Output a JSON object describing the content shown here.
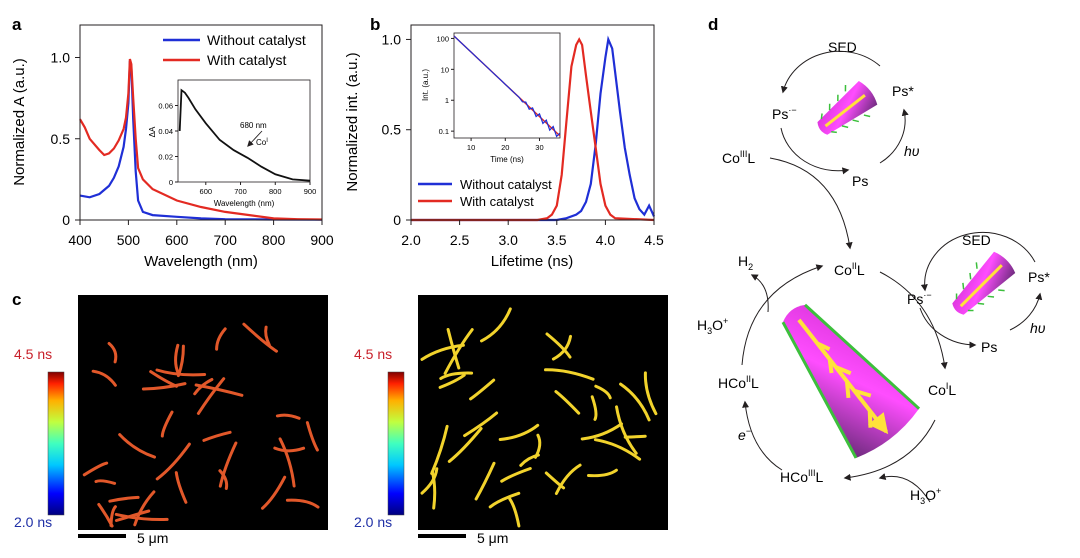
{
  "panel_labels": {
    "a": "a",
    "b": "b",
    "c": "c",
    "d": "d"
  },
  "colors": {
    "without": "#1f2fd6",
    "with": "#e32a22",
    "inset": "#111111"
  },
  "chart_data": [
    {
      "id": "a",
      "type": "line",
      "xlabel": "Wavelength (nm)",
      "ylabel": "Normalized A (a.u.)",
      "xlim": [
        400,
        900
      ],
      "ylim": [
        0,
        1.2
      ],
      "xticks": [
        400,
        500,
        600,
        700,
        800,
        900
      ],
      "yticks": [
        0,
        0.5,
        1.0
      ],
      "ytick_labels": [
        "0",
        "0.5",
        "1.0"
      ],
      "legend": "top-right",
      "series": [
        {
          "name": "Without catalyst",
          "color": "#1f2fd6",
          "x": [
            400,
            420,
            440,
            460,
            470,
            480,
            490,
            495,
            500,
            503,
            506,
            510,
            515,
            520,
            530,
            550,
            600,
            650,
            700,
            800,
            900
          ],
          "y": [
            0.15,
            0.14,
            0.16,
            0.21,
            0.26,
            0.33,
            0.45,
            0.56,
            0.72,
            0.98,
            0.95,
            0.62,
            0.3,
            0.12,
            0.05,
            0.03,
            0.02,
            0.01,
            0.005,
            0.003,
            0.002
          ]
        },
        {
          "name": "With catalyst",
          "color": "#e32a22",
          "x": [
            400,
            410,
            420,
            440,
            450,
            460,
            470,
            480,
            490,
            495,
            500,
            503,
            506,
            510,
            515,
            520,
            530,
            550,
            600,
            650,
            700,
            750,
            800,
            850,
            900
          ],
          "y": [
            0.62,
            0.57,
            0.5,
            0.43,
            0.4,
            0.41,
            0.44,
            0.49,
            0.56,
            0.63,
            0.78,
            0.99,
            0.96,
            0.75,
            0.5,
            0.32,
            0.25,
            0.19,
            0.12,
            0.08,
            0.05,
            0.03,
            0.01,
            0.005,
            0.003
          ]
        }
      ],
      "inset": {
        "xlabel": "Wavelength (nm)",
        "ylabel": "ΔA",
        "xlim": [
          520,
          900
        ],
        "ylim": [
          0,
          0.08
        ],
        "xticks": [
          600,
          700,
          800,
          900
        ],
        "yticks": [
          0,
          0.02,
          0.04,
          0.06
        ],
        "ytick_labels": [
          "0",
          "0.02",
          "0.04",
          "0.06"
        ],
        "annotation": "680 nm",
        "annotation2": "Co",
        "annotation2_sup": "I",
        "x": [
          525,
          530,
          540,
          550,
          570,
          600,
          640,
          680,
          700,
          720,
          760,
          800,
          850,
          900
        ],
        "y": [
          0.04,
          0.072,
          0.07,
          0.066,
          0.057,
          0.046,
          0.033,
          0.025,
          0.022,
          0.019,
          0.012,
          0.006,
          0.002,
          0.001
        ]
      }
    },
    {
      "id": "b",
      "type": "line",
      "xlabel": "Lifetime (ns)",
      "ylabel": "Normalized int. (a.u.)",
      "xlim": [
        2.0,
        4.5
      ],
      "ylim": [
        0,
        1.08
      ],
      "xticks": [
        2.0,
        2.5,
        3.0,
        3.5,
        4.0,
        4.5
      ],
      "xtick_labels": [
        "2.0",
        "2.5",
        "3.0",
        "3.5",
        "4.0",
        "4.5"
      ],
      "yticks": [
        0,
        0.5,
        1.0
      ],
      "ytick_labels": [
        "0",
        "0.5",
        "1.0"
      ],
      "legend": "bottom-left",
      "series": [
        {
          "name": "Without catalyst",
          "color": "#1f2fd6",
          "x": [
            2.0,
            3.5,
            3.6,
            3.7,
            3.75,
            3.8,
            3.85,
            3.9,
            3.95,
            4.0,
            4.03,
            4.07,
            4.1,
            4.15,
            4.2,
            4.25,
            4.3,
            4.35,
            4.4,
            4.45,
            4.5
          ],
          "y": [
            0,
            0,
            0.01,
            0.03,
            0.05,
            0.1,
            0.2,
            0.42,
            0.7,
            0.9,
            1.0,
            0.95,
            0.82,
            0.6,
            0.4,
            0.25,
            0.12,
            0.06,
            0.03,
            0.08,
            0.02
          ]
        },
        {
          "name": "With catalyst",
          "color": "#e32a22",
          "x": [
            2.0,
            3.3,
            3.4,
            3.45,
            3.5,
            3.55,
            3.6,
            3.65,
            3.7,
            3.73,
            3.76,
            3.8,
            3.85,
            3.9,
            3.95,
            4.0,
            4.05,
            4.1,
            4.5
          ],
          "y": [
            0,
            0,
            0.01,
            0.03,
            0.08,
            0.25,
            0.55,
            0.85,
            0.97,
            1.0,
            0.97,
            0.8,
            0.6,
            0.4,
            0.2,
            0.08,
            0.03,
            0.01,
            0
          ]
        }
      ],
      "inset": {
        "xlabel": "Time (ns)",
        "ylabel": "Int. (a.u.)",
        "xlim": [
          5,
          36
        ],
        "ylim_log": [
          0.06,
          150
        ],
        "xticks": [
          10,
          20,
          30
        ],
        "yticks": [
          0.1,
          1,
          10,
          100
        ],
        "ytick_labels": [
          "0.1",
          "1",
          "10",
          "100"
        ],
        "x": [
          5,
          36
        ],
        "y": [
          120,
          0.07
        ]
      }
    }
  ],
  "panel_c": {
    "scale_top": "4.5 ns",
    "scale_bottom": "2.0 ns",
    "scalebar": "5 μm",
    "left_color": "#e2582a",
    "right_color": "#f2d32c"
  },
  "panel_d": {
    "sed": "SED",
    "ps": "Ps",
    "ps_radical": "Ps",
    "ps_radical_sup": "·−",
    "ps_star": "Ps*",
    "hv": "hυ",
    "co3l": "Co",
    "co3l_sup": "III",
    "co2l": "Co",
    "co2l_sup": "II",
    "co1l": "Co",
    "co1l_sup": "I",
    "hco2l": "HCo",
    "hco2l_sup": "II",
    "hco3l": "HCo",
    "hco3l_sup": "III",
    "l": "L",
    "h2": "H",
    "h2_sub": "2",
    "h3o": "H",
    "h3o_sub": "3",
    "h3o_tail": "O",
    "h3o_sup": "+",
    "electron": "e",
    "electron_sup": "−"
  }
}
